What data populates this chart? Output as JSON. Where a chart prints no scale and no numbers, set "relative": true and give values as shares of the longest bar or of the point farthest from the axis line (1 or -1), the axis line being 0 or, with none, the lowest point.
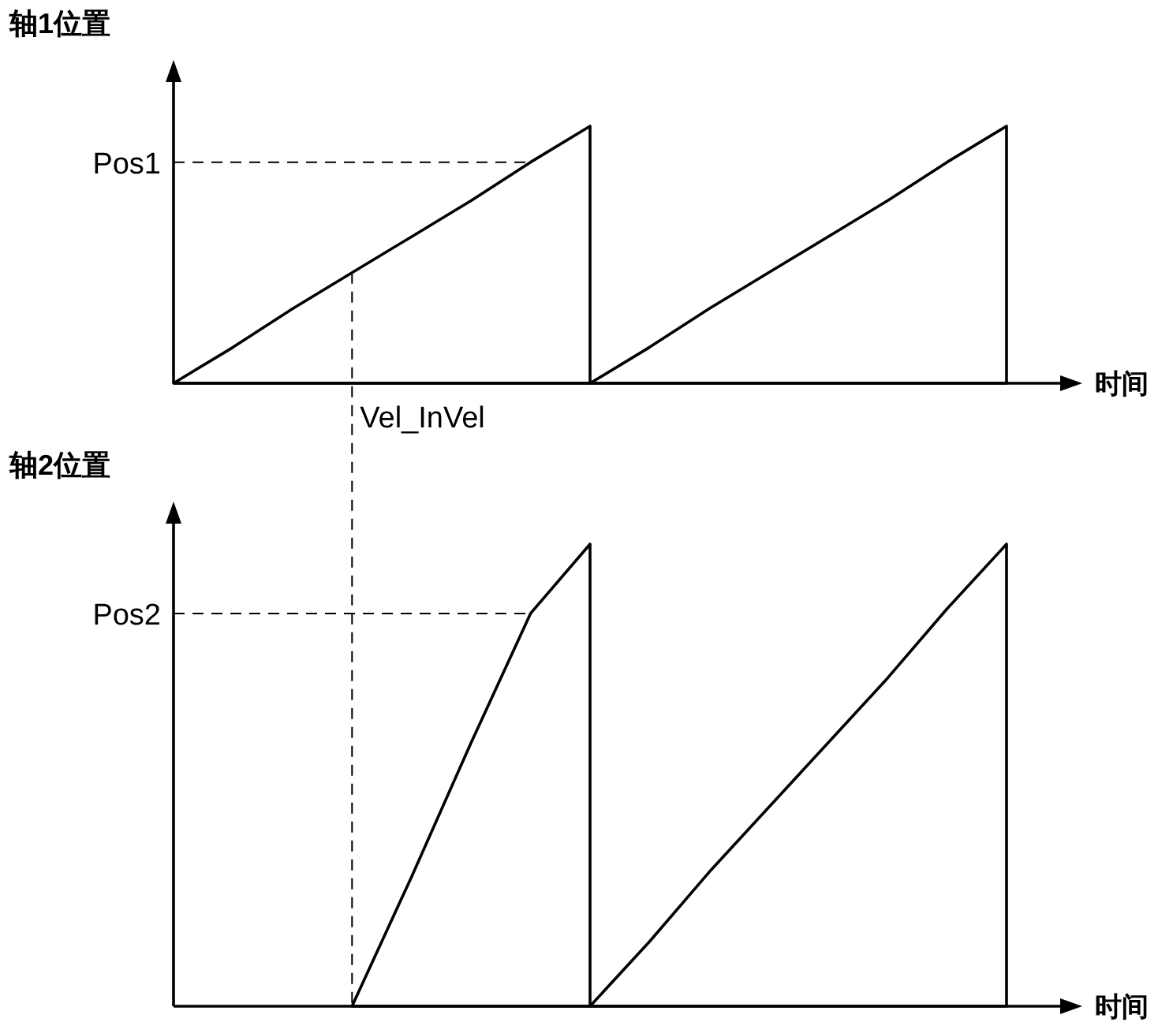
{
  "chart_data": [
    {
      "type": "area",
      "relative": true,
      "ylabel": "轴1位置",
      "xlabel": "时间",
      "categories": [
        null,
        null,
        null,
        null,
        null,
        null,
        null,
        null,
        null,
        null,
        null,
        null,
        null,
        null,
        null
      ],
      "series": [
        {
          "color": "#000000",
          "values": [
            0,
            0.14,
            0.29,
            0.43,
            0.57,
            0.71,
            0.86,
            1,
            null,
            null,
            null,
            null,
            null,
            null,
            null
          ]
        },
        {
          "color": "#000000",
          "values": [
            null,
            null,
            null,
            null,
            null,
            null,
            null,
            0,
            0.14,
            0.29,
            0.43,
            0.57,
            0.71,
            0.86,
            1
          ]
        }
      ],
      "ref_lines": [
        {
          "axis": "y",
          "value": 0.86,
          "label": "Pos1",
          "line_style": "dashed"
        }
      ],
      "annotations": [
        "Vel_InVel"
      ]
    },
    {
      "type": "area",
      "relative": true,
      "ylabel": "轴2位置",
      "xlabel": "时间",
      "categories": [
        null,
        null,
        null,
        null,
        null,
        null,
        null,
        null,
        null,
        null,
        null,
        null,
        null,
        null,
        null
      ],
      "series": [
        {
          "color": "#000000",
          "values": [
            null,
            null,
            null,
            0,
            0.28,
            0.57,
            0.85,
            1,
            null,
            null,
            null,
            null,
            null,
            null,
            null
          ]
        },
        {
          "color": "#000000",
          "values": [
            null,
            null,
            null,
            null,
            null,
            null,
            null,
            0,
            0.14,
            0.29,
            0.43,
            0.57,
            0.71,
            0.86,
            1
          ]
        }
      ],
      "ref_lines": [
        {
          "axis": "y",
          "value": 0.85,
          "label": "Pos2",
          "line_style": "dashed"
        }
      ]
    }
  ]
}
